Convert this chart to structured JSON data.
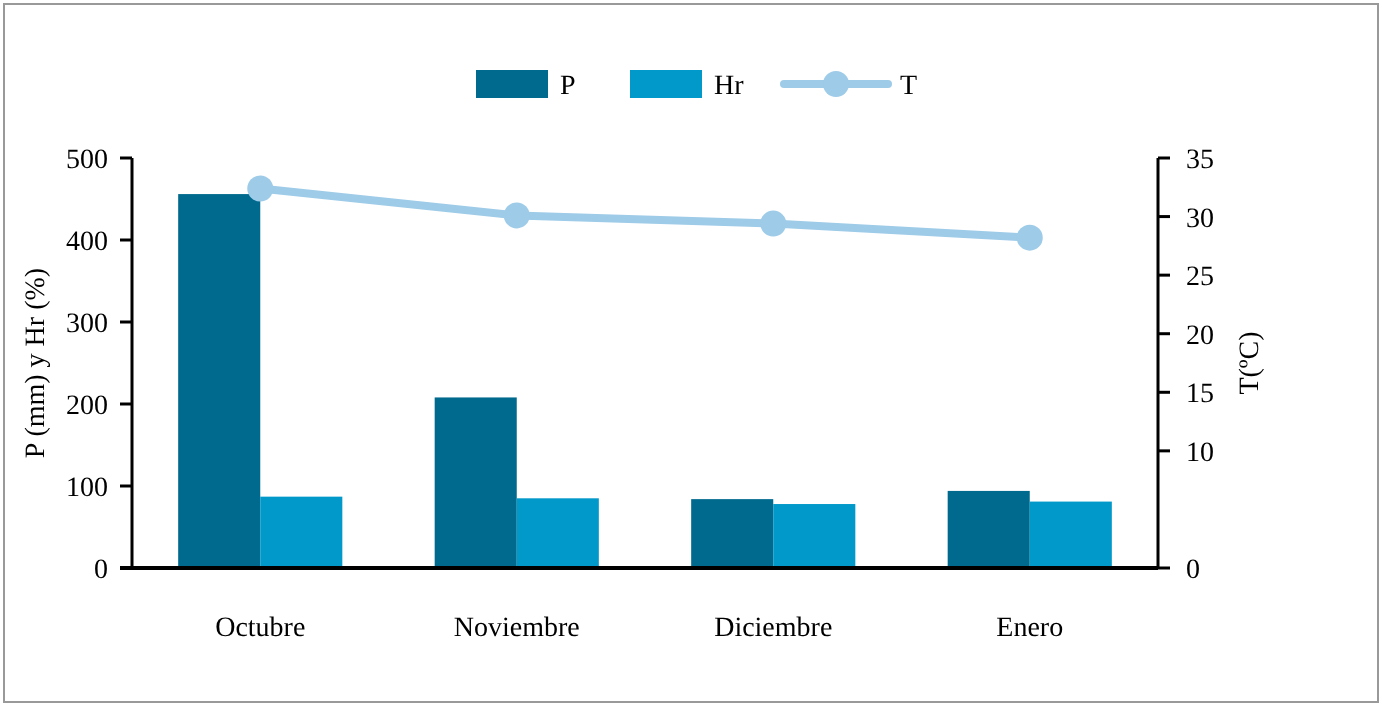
{
  "chart_data": {
    "type": "bar",
    "categories": [
      "Octubre",
      "Noviembre",
      "Diciembre",
      "Enero"
    ],
    "ylabel": "P (mm) y Hr (%)",
    "y2label": "T(ºC)",
    "ylim": [
      0,
      500
    ],
    "yticks": [
      0,
      100,
      200,
      300,
      400,
      500
    ],
    "y2lim": [
      0,
      35
    ],
    "y2ticks": [
      0,
      10,
      15,
      20,
      25,
      30,
      35
    ],
    "legend": "top",
    "grid": false,
    "marker": "circle",
    "series": [
      {
        "name": "P",
        "color": "#006a8e",
        "values": [
          456,
          208,
          84,
          94
        ]
      },
      {
        "name": "Hr",
        "color": "#0099c9",
        "values": [
          87,
          85,
          78,
          81
        ]
      },
      {
        "name": "T",
        "type": "line",
        "axis": "y2",
        "color": "#9dcbe8",
        "values": [
          32.4,
          30.1,
          29.4,
          28.2
        ]
      }
    ]
  }
}
